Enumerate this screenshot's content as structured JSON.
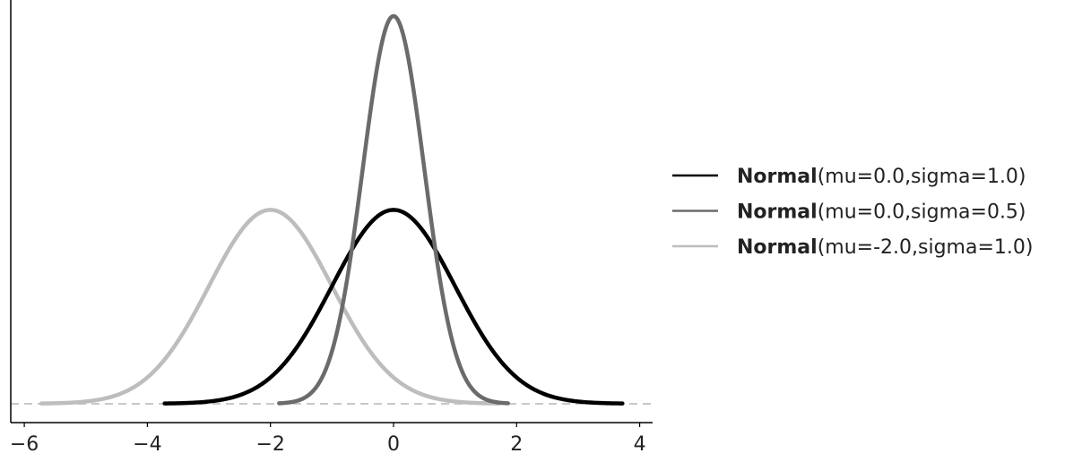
{
  "chart_data": {
    "type": "line",
    "xlim": [
      -6.22,
      4.21
    ],
    "ylim": [
      -0.039,
      0.831
    ],
    "xticks": [
      "−6",
      "−4",
      "−2",
      "0",
      "2",
      "4"
    ],
    "xtick_values": [
      -6,
      -4,
      -2,
      0,
      2,
      4
    ],
    "grid": false,
    "legend_position": "right",
    "reference_line": {
      "y": 0,
      "style": "dashed",
      "color": "#c8c8c8"
    },
    "series": [
      {
        "name_bold": "Normal",
        "name_rest": "(mu=0.0,sigma=1.0)",
        "mu": 0.0,
        "sigma": 1.0,
        "x_range": [
          -3.72,
          3.72
        ],
        "peak": 0.399,
        "color": "#000000"
      },
      {
        "name_bold": "Normal",
        "name_rest": "(mu=0.0,sigma=0.5)",
        "mu": 0.0,
        "sigma": 0.5,
        "x_range": [
          -1.86,
          1.86
        ],
        "peak": 0.798,
        "color": "#6b6b6b"
      },
      {
        "name_bold": "Normal",
        "name_rest": "(mu=-2.0,sigma=1.0)",
        "mu": -2.0,
        "sigma": 1.0,
        "x_range": [
          -5.72,
          1.72
        ],
        "peak": 0.399,
        "color": "#bdbdbd"
      }
    ]
  }
}
